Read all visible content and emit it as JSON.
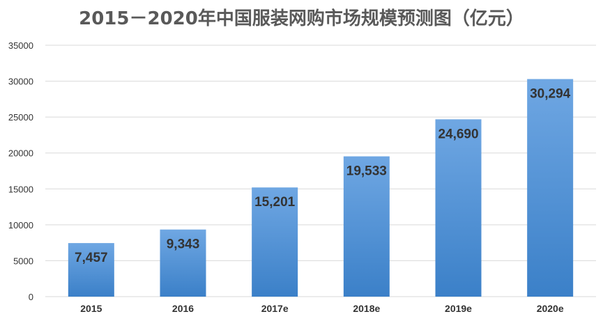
{
  "chart_data": {
    "type": "bar",
    "title": "2015－2020年中国服装网购市场规模预测图（亿元）",
    "categories": [
      "2015",
      "2016",
      "2017e",
      "2018e",
      "2019e",
      "2020e"
    ],
    "values": [
      7457,
      9343,
      15201,
      19533,
      24690,
      30294
    ],
    "data_labels": [
      "7,457",
      "9,343",
      "15,201",
      "19,533",
      "24,690",
      "30,294"
    ],
    "ylim": [
      0,
      35000
    ],
    "y_ticks": [
      "0",
      "5000",
      "10000",
      "15000",
      "20000",
      "25000",
      "30000",
      "35000"
    ],
    "xlabel": "",
    "ylabel": "",
    "grid": true,
    "legend": "none",
    "colors": {
      "bar_top": "#6fa7e3",
      "bar_bottom": "#3b80c8",
      "grid": "#d9d9d9"
    }
  }
}
